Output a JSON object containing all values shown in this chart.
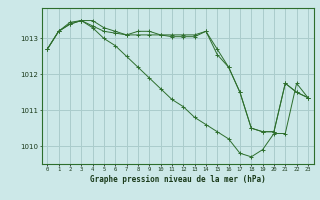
{
  "title": "Graphe pression niveau de la mer (hPa)",
  "bg_color": "#cce8e8",
  "grid_color": "#aacccc",
  "line_color": "#2d6e2d",
  "x_labels": [
    "0",
    "1",
    "2",
    "3",
    "4",
    "5",
    "6",
    "7",
    "8",
    "9",
    "10",
    "11",
    "12",
    "13",
    "14",
    "15",
    "16",
    "17",
    "18",
    "19",
    "20",
    "21",
    "22",
    "23"
  ],
  "ylim": [
    1009.5,
    1013.85
  ],
  "yticks": [
    1010,
    1011,
    1012,
    1013
  ],
  "series": [
    [
      1012.7,
      1013.2,
      1013.4,
      1013.5,
      1013.5,
      1013.3,
      1013.2,
      1013.1,
      1013.2,
      1013.2,
      1013.1,
      1013.1,
      1013.1,
      1013.1,
      1013.2,
      1012.7,
      1012.2,
      1011.5,
      1010.5,
      1010.4,
      1010.4,
      1011.75,
      1011.5,
      1011.35
    ],
    [
      1012.7,
      1013.2,
      1013.4,
      1013.5,
      1013.3,
      1013.0,
      1012.8,
      1012.5,
      1012.2,
      1011.9,
      1011.6,
      1011.3,
      1011.1,
      1010.8,
      1010.6,
      1010.4,
      1010.2,
      1009.8,
      1009.7,
      1009.9,
      1010.35,
      1010.35,
      1011.75,
      1011.35
    ],
    [
      1012.7,
      1013.2,
      1013.45,
      1013.5,
      1013.35,
      1013.2,
      1013.15,
      1013.1,
      1013.1,
      1013.1,
      1013.1,
      1013.05,
      1013.05,
      1013.05,
      1013.2,
      1012.55,
      1012.2,
      1011.5,
      1010.5,
      1010.4,
      1010.4,
      1011.75,
      1011.5,
      1011.35
    ]
  ],
  "figsize": [
    3.2,
    2.0
  ],
  "dpi": 100
}
